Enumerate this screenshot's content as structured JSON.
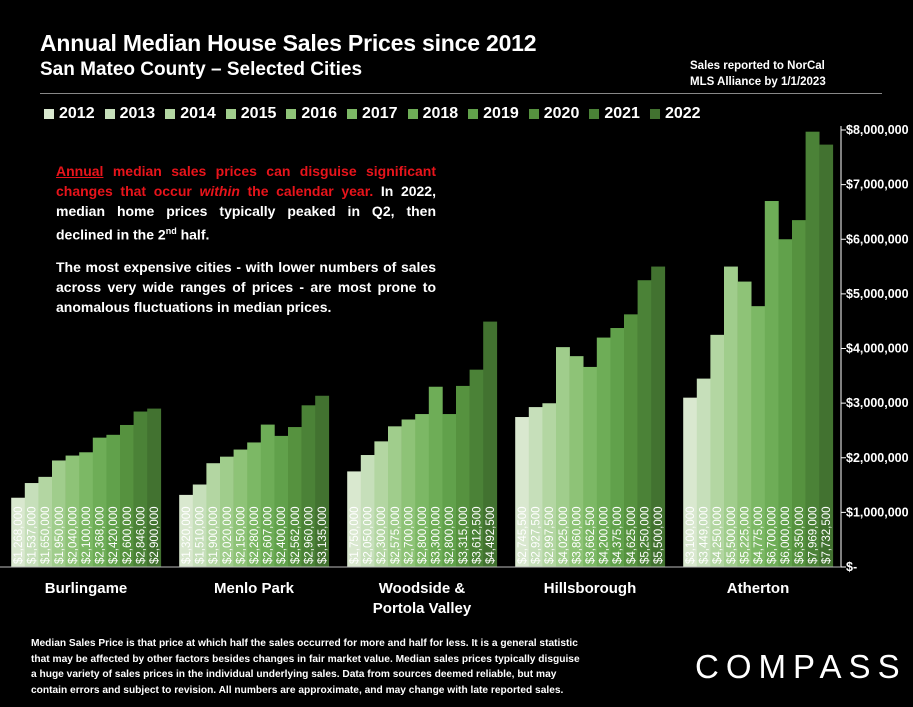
{
  "header": {
    "title": "Annual Median House Sales Prices since 2012",
    "subtitle": "San Mateo County – Selected Cities",
    "source_line1": "Sales reported to NorCal",
    "source_line2": "MLS Alliance by 1/1/2023"
  },
  "notes": {
    "note1_red_underlined": "Annual",
    "note1_red_a": " median sales prices can disguise significant changes that occur ",
    "note1_red_italic": "within",
    "note1_red_b": " the calendar year.",
    "note1_white_a": " In 2022, median home prices typically peaked in Q2, then declined in the 2",
    "note1_sup": "nd",
    "note1_white_b": " half.",
    "note2": "The most expensive cities - with lower numbers of sales across very wide ranges of prices - are most prone to anomalous fluctuations in median prices."
  },
  "footnote": {
    "line1": "Median Sales Price is that price at which half the sales occurred for more and half for less. It is a general statistic",
    "line2": "that may be affected by other factors besides changes in fair market value. Median sales prices typically disguise",
    "line3": "a huge variety of sales prices in the individual underlying sales. Data from sources deemed reliable, but may",
    "line4": "contain errors and subject to revision.  All numbers are approximate, and may change with late reported sales."
  },
  "logo": "COMPASS",
  "colors": {
    "background": "#000000",
    "series": [
      "#d9e8cf",
      "#c6dfba",
      "#b3d6a2",
      "#a0cd8c",
      "#8ec377",
      "#7cb865",
      "#6ead57",
      "#61a14b",
      "#56923f",
      "#4b8237",
      "#427230"
    ]
  },
  "chart_data": {
    "type": "bar",
    "title": "Annual Median House Sales Prices since 2012",
    "subtitle": "San Mateo County – Selected Cities",
    "categories": [
      "Burlingame",
      "Menlo Park",
      "Woodside & Portola Valley",
      "Hillsborough",
      "Atherton"
    ],
    "category_lines": [
      [
        "Burlingame"
      ],
      [
        "Menlo Park"
      ],
      [
        "Woodside &",
        "Portola Valley"
      ],
      [
        "Hillsborough"
      ],
      [
        "Atherton"
      ]
    ],
    "ylim": [
      0,
      8000000
    ],
    "yticks": [
      "$-",
      "$1,000,000",
      "$2,000,000",
      "$3,000,000",
      "$4,000,000",
      "$5,000,000",
      "$6,000,000",
      "$7,000,000",
      "$8,000,000"
    ],
    "legend_position": "top",
    "series": [
      {
        "name": "2012",
        "values": [
          1268000,
          1320000,
          1750000,
          2745500,
          3100000
        ],
        "labels": [
          "$1,268,000",
          "$1,320,000",
          "$1,750,000",
          "$2,745,500",
          "$3,100,000"
        ]
      },
      {
        "name": "2013",
        "values": [
          1537000,
          1510000,
          2050000,
          2927500,
          3449000
        ],
        "labels": [
          "$1,537,000",
          "$1,510,000",
          "$2,050,000",
          "$2,927,500",
          "$3,449,000"
        ]
      },
      {
        "name": "2014",
        "values": [
          1650000,
          1900000,
          2300000,
          2997500,
          4250000
        ],
        "labels": [
          "$1,650,000",
          "$1,900,000",
          "$2,300,000",
          "$2,997,500",
          "$4,250,000"
        ]
      },
      {
        "name": "2015",
        "values": [
          1950000,
          2020000,
          2575000,
          4025000,
          5500000
        ],
        "labels": [
          "$1,950,000",
          "$2,020,000",
          "$2,575,000",
          "$4,025,000",
          "$5,500,000"
        ]
      },
      {
        "name": "2016",
        "values": [
          2040000,
          2150000,
          2700000,
          3860000,
          5225000
        ],
        "labels": [
          "$2,040,000",
          "$2,150,000",
          "$2,700,000",
          "$3,860,000",
          "$5,225,000"
        ]
      },
      {
        "name": "2017",
        "values": [
          2100000,
          2280000,
          2800000,
          3662500,
          4775000
        ],
        "labels": [
          "$2,100,000",
          "$2,280,000",
          "$2,800,000",
          "$3,662,500",
          "$4,775,000"
        ]
      },
      {
        "name": "2018",
        "values": [
          2368000,
          2607000,
          3300000,
          4200000,
          6700000
        ],
        "labels": [
          "$2,368,000",
          "$2,607,000",
          "$3,300,000",
          "$4,200,000",
          "$6,700,000"
        ]
      },
      {
        "name": "2019",
        "values": [
          2420000,
          2400000,
          2800000,
          4375000,
          6000000
        ],
        "labels": [
          "$2,420,000",
          "$2,400,000",
          "$2,800,000",
          "$4,375,000",
          "$6,000,000"
        ]
      },
      {
        "name": "2020",
        "values": [
          2600000,
          2562000,
          3315000,
          4625000,
          6350000
        ],
        "labels": [
          "$2,600,000",
          "$2,562,000",
          "$3,315,000",
          "$4,625,000",
          "$6,350,000"
        ]
      },
      {
        "name": "2021",
        "values": [
          2846000,
          2960000,
          3612500,
          5250000,
          7969000
        ],
        "labels": [
          "$2,846,000",
          "$2,960,000",
          "$3,612,500",
          "$5,250,000",
          "$7,969,000"
        ]
      },
      {
        "name": "2022",
        "values": [
          2900000,
          3135000,
          4492500,
          5500000,
          7732500
        ],
        "labels": [
          "$2,900,000",
          "$3,135,000",
          "$4,492,500",
          "$5,500,000",
          "$7,732,500"
        ]
      }
    ]
  }
}
